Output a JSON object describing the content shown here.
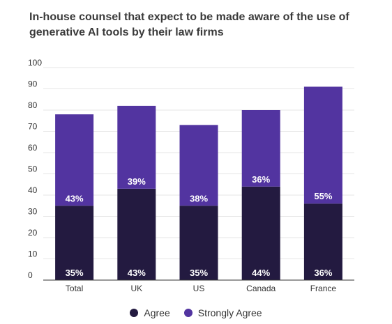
{
  "chart_data": {
    "type": "bar",
    "stacked": true,
    "title": "In-house counsel that expect to be made aware of the use of generative AI tools by their law firms",
    "categories": [
      "Total",
      "UK",
      "US",
      "Canada",
      "France"
    ],
    "series": [
      {
        "name": "Agree",
        "color": "#231a40",
        "values": [
          35,
          43,
          35,
          44,
          36
        ],
        "labels": [
          "35%",
          "43%",
          "35%",
          "44%",
          "36%"
        ]
      },
      {
        "name": "Strongly Agree",
        "color": "#5234a0",
        "values": [
          43,
          39,
          38,
          36,
          55
        ],
        "labels": [
          "43%",
          "39%",
          "38%",
          "36%",
          "55%"
        ]
      }
    ],
    "ylim": [
      0,
      100
    ],
    "yticks": [
      0,
      10,
      20,
      30,
      40,
      50,
      60,
      70,
      80,
      90,
      100
    ],
    "grid": true,
    "legend_position": "bottom"
  }
}
